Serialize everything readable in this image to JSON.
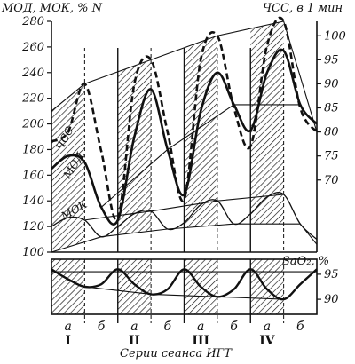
{
  "colors": {
    "ink": "#111111",
    "paper": "#ffffff",
    "hatch": "#111111"
  },
  "chart_data": [
    {
      "type": "line",
      "panel": "top",
      "ylabel": "МОД, МОК, % N",
      "y2label": "ЧСС, в 1 мин",
      "ylim": [
        100,
        280
      ],
      "yticks": [
        100,
        120,
        140,
        160,
        180,
        200,
        220,
        240,
        260,
        280
      ],
      "y2lim": [
        55,
        103
      ],
      "y2ticks": [
        70,
        75,
        80,
        85,
        90,
        95,
        100
      ],
      "xlim": [
        0,
        8
      ],
      "hatched_periods": [
        [
          0,
          1
        ],
        [
          2,
          3
        ],
        [
          4,
          5
        ],
        [
          6,
          7
        ]
      ],
      "series": [
        {
          "name": "ЧСС",
          "axis": "right",
          "style": "heavy-dashed",
          "points": [
            [
              0,
              78
            ],
            [
              0.5,
              80
            ],
            [
              1,
              90
            ],
            [
              1.5,
              76
            ],
            [
              2,
              62
            ],
            [
              2.5,
              90
            ],
            [
              3,
              95
            ],
            [
              3.5,
              80
            ],
            [
              4,
              66
            ],
            [
              4.5,
              95
            ],
            [
              5,
              100
            ],
            [
              5.5,
              85
            ],
            [
              6,
              77
            ],
            [
              6.5,
              98
            ],
            [
              7,
              103
            ],
            [
              7.5,
              85
            ],
            [
              8,
              80
            ]
          ]
        },
        {
          "name": "МОД",
          "axis": "left",
          "style": "heavy-solid",
          "points": [
            [
              0,
              165
            ],
            [
              0.5,
              175
            ],
            [
              1,
              170
            ],
            [
              1.5,
              135
            ],
            [
              2,
              125
            ],
            [
              2.5,
              190
            ],
            [
              3,
              227
            ],
            [
              3.5,
              180
            ],
            [
              4,
              145
            ],
            [
              4.5,
              210
            ],
            [
              5,
              240
            ],
            [
              5.5,
              215
            ],
            [
              6,
              195
            ],
            [
              6.5,
              240
            ],
            [
              7,
              257
            ],
            [
              7.5,
              215
            ],
            [
              8,
              200
            ]
          ]
        },
        {
          "name": "МОК",
          "axis": "left",
          "style": "light-solid",
          "points": [
            [
              0,
              120
            ],
            [
              0.5,
              127
            ],
            [
              1,
              125
            ],
            [
              1.5,
              112
            ],
            [
              2,
              120
            ],
            [
              2.5,
              130
            ],
            [
              3,
              132
            ],
            [
              3.5,
              118
            ],
            [
              4,
              123
            ],
            [
              4.5,
              137
            ],
            [
              5,
              140
            ],
            [
              5.5,
              122
            ],
            [
              6,
              130
            ],
            [
              6.5,
              143
            ],
            [
              7,
              145
            ],
            [
              7.5,
              122
            ],
            [
              8,
              110
            ]
          ]
        }
      ]
    },
    {
      "type": "line",
      "panel": "bottom",
      "y2label": "SaO₂, %",
      "y2lim": [
        87,
        98
      ],
      "y2ticks": [
        90,
        95
      ],
      "xlim": [
        0,
        8
      ],
      "categories": [
        "а",
        "б",
        "а",
        "б",
        "а",
        "б",
        "а",
        "б"
      ],
      "groups": [
        "I",
        "II",
        "III",
        "IV"
      ],
      "xlabel": "Серии сеанса ИГТ",
      "series": [
        {
          "name": "SaO₂",
          "axis": "right",
          "style": "heavy-solid",
          "points": [
            [
              0,
              96
            ],
            [
              0.5,
              94
            ],
            [
              1,
              92.5
            ],
            [
              1.5,
              93
            ],
            [
              2,
              96
            ],
            [
              2.5,
              93
            ],
            [
              3,
              91
            ],
            [
              3.5,
              92
            ],
            [
              4,
              96
            ],
            [
              4.5,
              92.5
            ],
            [
              5,
              90.5
            ],
            [
              5.5,
              92
            ],
            [
              6,
              96
            ],
            [
              6.5,
              92
            ],
            [
              7,
              90
            ],
            [
              7.5,
              93
            ],
            [
              8,
              96
            ]
          ]
        }
      ]
    }
  ]
}
